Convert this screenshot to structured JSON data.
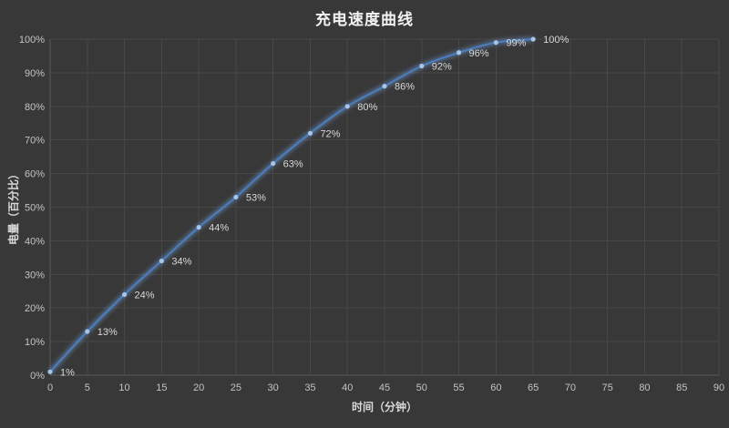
{
  "chart_data": {
    "type": "line",
    "title": "充电速度曲线",
    "xlabel": "时间（分钟）",
    "ylabel": "电量（百分比）",
    "x": [
      0,
      5,
      10,
      15,
      20,
      25,
      30,
      35,
      40,
      45,
      50,
      55,
      60,
      65
    ],
    "values": [
      1,
      13,
      24,
      34,
      44,
      53,
      63,
      72,
      80,
      86,
      92,
      96,
      99,
      100
    ],
    "point_labels": [
      "1%",
      "13%",
      "24%",
      "34%",
      "44%",
      "53%",
      "63%",
      "72%",
      "80%",
      "86%",
      "92%",
      "96%",
      "99%",
      "100%"
    ],
    "xlim": [
      0,
      90
    ],
    "ylim": [
      0,
      100
    ],
    "x_ticks": [
      0,
      5,
      10,
      15,
      20,
      25,
      30,
      35,
      40,
      45,
      50,
      55,
      60,
      65,
      70,
      75,
      80,
      85,
      90
    ],
    "y_ticks": [
      "0%",
      "10%",
      "20%",
      "30%",
      "40%",
      "50%",
      "60%",
      "70%",
      "80%",
      "90%",
      "100%"
    ],
    "grid": "both",
    "legend": "none",
    "smooth_line": true,
    "colors": {
      "background": "#383838",
      "gridline": "#474747",
      "axis_line": "#5a5a5a",
      "line": "#4a7ebf",
      "line_glow": "#6f9dd8",
      "marker": "#a6c5e8",
      "tick_text": "#c3c3c3",
      "title_text": "#f2f2f2",
      "axis_title_text": "#d8d8d8",
      "point_label_text": "#d9d9d9"
    }
  }
}
